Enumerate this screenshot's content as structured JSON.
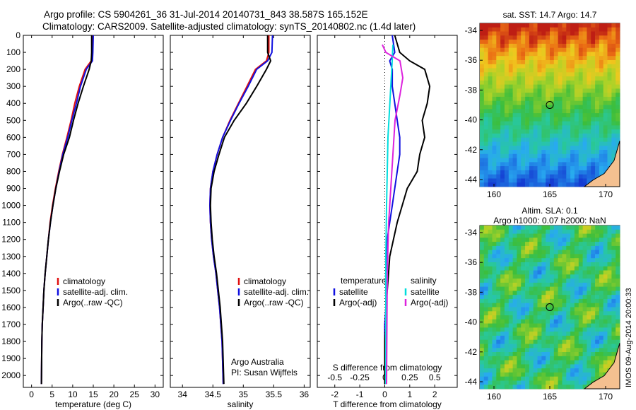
{
  "header": {
    "line1": "Argo profile: CS 5904261_36 31-Jul-2014 20140731_843 38.587S 165.152E",
    "line2": "Climatology: CARS2009. Satellite-adjusted climatology: synTS_20140802.nc (1.4d later)"
  },
  "colors": {
    "climatology": "#e01010",
    "satellite": "#1010e0",
    "argo": "#000000",
    "cyan": "#00dddd",
    "magenta": "#dd22dd"
  },
  "depth_ticks": [
    0,
    100,
    200,
    300,
    400,
    500,
    600,
    700,
    800,
    900,
    1000,
    1100,
    1200,
    1300,
    1400,
    1500,
    1600,
    1700,
    1800,
    1900,
    2000
  ],
  "panels": {
    "temperature": {
      "xlabel": "temperature (deg C)",
      "xticks": [
        "0",
        "5",
        "10",
        "15",
        "20",
        "25",
        "30"
      ],
      "legend": [
        "climatology",
        "satellite-adj. clim.",
        "Argo(..raw -QC)"
      ]
    },
    "salinity": {
      "xlabel": "salinity",
      "xticks": [
        "34",
        "34.5",
        "35",
        "35.5",
        "36"
      ],
      "legend": [
        "climatology",
        "satellite-adj. clim.",
        "Argo(..raw -QC)"
      ],
      "credit1": "Argo Australia",
      "credit2": "PI: Susan Wijffels"
    },
    "difference": {
      "xlabel": "T difference from climatology",
      "xticks": [
        "-2",
        "-1",
        "0",
        "1",
        "2"
      ],
      "toplabel": "S difference from climatology",
      "topticks": [
        "-0.5",
        "-0.25",
        "0",
        "0.25",
        "0.5"
      ],
      "legend_t_title": "temperature",
      "legend_s_title": "salinity",
      "legend_t": [
        "satellite",
        "Argo(-adj)"
      ],
      "legend_s": [
        "satellite",
        "Argo(-adj)"
      ]
    }
  },
  "maps": {
    "sst": {
      "title": "sat. SST: 14.7  Argo: 14.7",
      "yticks": [
        "-34",
        "-36",
        "-38",
        "-40",
        "-42",
        "-44"
      ],
      "xticks": [
        "160",
        "165",
        "170"
      ]
    },
    "sla": {
      "title1": "Altim. SLA: 0.1",
      "title2": "Argo h1000: 0.07 h2000: NaN",
      "yticks": [
        "-34",
        "-36",
        "-38",
        "-40",
        "-42",
        "-44"
      ],
      "xticks": [
        "160",
        "165",
        "170"
      ],
      "stamp": "IMOS 09-Aug-2014 20:00:33"
    }
  },
  "chart_data": [
    {
      "type": "line",
      "title": "",
      "xlabel": "temperature (deg C)",
      "ylabel": "",
      "xlim": [
        -2,
        32
      ],
      "ylim": [
        2070,
        0
      ],
      "series": [
        {
          "name": "climatology",
          "x": [
            14.8,
            14.7,
            14.5,
            13.0,
            11.6,
            10.5,
            9.6,
            8.6,
            7.5,
            6.6,
            5.8,
            5.1,
            4.5,
            4.1,
            3.7,
            3.3,
            3.0,
            2.8,
            2.6,
            2.5,
            2.4
          ],
          "y": [
            0,
            100,
            150,
            200,
            300,
            400,
            500,
            600,
            700,
            800,
            900,
            1000,
            1100,
            1200,
            1300,
            1400,
            1500,
            1600,
            1700,
            1800,
            2050
          ]
        },
        {
          "name": "satellite-adj. clim.",
          "x": [
            15.0,
            14.9,
            14.8,
            13.3,
            11.9,
            10.9,
            9.8,
            8.8,
            7.6,
            6.7,
            5.9,
            5.2,
            4.6,
            4.1,
            3.7,
            3.3,
            3.0,
            2.8,
            2.6,
            2.5,
            2.4
          ],
          "y": [
            0,
            100,
            150,
            200,
            300,
            400,
            500,
            600,
            700,
            800,
            900,
            1000,
            1100,
            1200,
            1300,
            1400,
            1500,
            1600,
            1700,
            1800,
            2050
          ]
        },
        {
          "name": "Argo(..raw -QC)",
          "x": [
            14.6,
            14.6,
            14.5,
            14.0,
            12.6,
            11.3,
            10.2,
            9.2,
            7.8,
            6.8,
            5.9,
            5.2,
            4.6,
            4.1,
            3.7,
            3.3,
            3.0,
            2.8,
            2.6,
            2.5,
            2.4
          ],
          "y": [
            0,
            100,
            150,
            200,
            300,
            400,
            500,
            600,
            700,
            800,
            900,
            1000,
            1100,
            1200,
            1300,
            1400,
            1500,
            1600,
            1700,
            1800,
            2050
          ]
        }
      ]
    },
    {
      "type": "line",
      "title": "",
      "xlabel": "salinity",
      "ylabel": "",
      "xlim": [
        33.8,
        36.1
      ],
      "ylim": [
        2070,
        0
      ],
      "series": [
        {
          "name": "climatology",
          "x": [
            35.42,
            35.42,
            35.38,
            35.2,
            35.06,
            34.92,
            34.78,
            34.66,
            34.57,
            34.5,
            34.46,
            34.45,
            34.46,
            34.48,
            34.51,
            34.55,
            34.58,
            34.61,
            34.63,
            34.65,
            34.67
          ],
          "y": [
            0,
            100,
            150,
            200,
            300,
            400,
            500,
            600,
            700,
            800,
            900,
            1000,
            1100,
            1200,
            1300,
            1400,
            1500,
            1600,
            1700,
            1800,
            2050
          ]
        },
        {
          "name": "satellite-adj. clim.",
          "x": [
            35.48,
            35.47,
            35.4,
            35.22,
            35.08,
            34.93,
            34.79,
            34.66,
            34.57,
            34.5,
            34.46,
            34.45,
            34.46,
            34.48,
            34.51,
            34.55,
            34.58,
            34.61,
            34.63,
            34.65,
            34.67
          ],
          "y": [
            0,
            100,
            150,
            200,
            300,
            400,
            500,
            600,
            700,
            800,
            900,
            1000,
            1100,
            1200,
            1300,
            1400,
            1500,
            1600,
            1700,
            1800,
            2050
          ]
        },
        {
          "name": "Argo(..raw -QC)",
          "x": [
            35.4,
            35.4,
            35.45,
            35.38,
            35.22,
            35.05,
            34.85,
            34.69,
            34.6,
            34.52,
            34.47,
            34.46,
            34.47,
            34.49,
            34.52,
            34.56,
            34.59,
            34.62,
            34.64,
            34.66,
            34.68
          ],
          "y": [
            0,
            100,
            150,
            200,
            300,
            400,
            500,
            600,
            700,
            800,
            900,
            1000,
            1100,
            1200,
            1300,
            1400,
            1500,
            1600,
            1700,
            1800,
            2050
          ]
        }
      ]
    },
    {
      "type": "line",
      "title": "",
      "xlabel": "T difference from climatology",
      "ylabel": "",
      "xlim": [
        -2.7,
        2.9
      ],
      "ylim": [
        2070,
        0
      ],
      "series": [
        {
          "name": "satellite",
          "x": [
            0.3,
            0.4,
            0.2,
            0.3,
            0.3,
            0.4,
            0.5,
            0.6,
            0.6,
            0.5,
            0.4,
            0.3,
            0.2,
            0.1,
            0.1,
            0.1,
            0.05,
            0.05,
            0.0,
            0.0,
            0.0
          ],
          "y": [
            0,
            100,
            150,
            200,
            300,
            400,
            500,
            600,
            700,
            800,
            900,
            1000,
            1100,
            1200,
            1300,
            1400,
            1500,
            1600,
            1700,
            1800,
            2050
          ]
        },
        {
          "name": "Argo(-adj)",
          "x": [
            0.4,
            0.6,
            1.0,
            1.6,
            1.8,
            1.7,
            1.5,
            1.6,
            1.4,
            1.3,
            0.9,
            0.7,
            0.5,
            0.35,
            0.2,
            0.15,
            0.1,
            0.05,
            0.05,
            0.0,
            0.0
          ],
          "y": [
            0,
            100,
            150,
            200,
            300,
            400,
            500,
            600,
            700,
            800,
            900,
            1000,
            1100,
            1200,
            1300,
            1400,
            1500,
            1600,
            1700,
            1800,
            2050
          ]
        }
      ]
    }
  ]
}
